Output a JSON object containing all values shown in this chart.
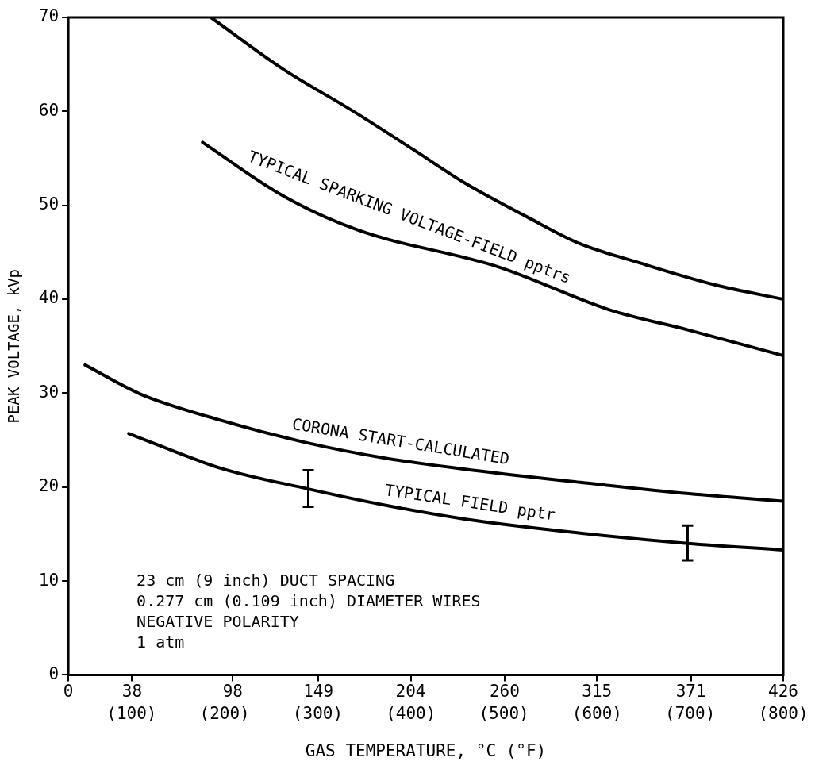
{
  "chart_data": {
    "type": "line",
    "xlabel": "GAS TEMPERATURE, °C (°F)",
    "ylabel": "PEAK VOLTAGE, kVp",
    "xlim": [
      0,
      426
    ],
    "ylim": [
      0,
      70
    ],
    "xticks": [
      0,
      38,
      98,
      149,
      204,
      260,
      315,
      371,
      426
    ],
    "x2lim": [
      32,
      800
    ],
    "x2ticks": [
      {
        "value": 100,
        "label": "(100)"
      },
      {
        "value": 200,
        "label": "(200)"
      },
      {
        "value": 300,
        "label": "(300)"
      },
      {
        "value": 400,
        "label": "(400)"
      },
      {
        "value": 500,
        "label": "(500)"
      },
      {
        "value": 600,
        "label": "(600)"
      },
      {
        "value": 700,
        "label": "(700)"
      },
      {
        "value": 800,
        "label": "(800)"
      }
    ],
    "yticks": [
      0,
      10,
      20,
      30,
      40,
      50,
      60,
      70
    ],
    "series": [
      {
        "color": "#000000",
        "x": [
          85,
          128,
          169,
          205,
          236,
          273,
          305,
          338,
          386,
          426
        ],
        "values": [
          70,
          64.5,
          60.1,
          56.0,
          52.4,
          48.8,
          45.9,
          44.0,
          41.5,
          40.0
        ]
      },
      {
        "name": "TYPICAL SPARKING VOLTAGE-FIELD pptrs",
        "color": "#000000",
        "x": [
          80,
          128,
          172,
          257,
          322,
          370,
          426
        ],
        "values": [
          56.7,
          51.0,
          47.4,
          43.4,
          38.9,
          36.7,
          34.0
        ]
      },
      {
        "name": "CORONA START-CALCULATED",
        "color": "#000000",
        "x": [
          10,
          43,
          91,
          140,
          188,
          241,
          305,
          370,
          426
        ],
        "values": [
          33.0,
          29.9,
          27.1,
          24.8,
          23.1,
          21.8,
          20.5,
          19.3,
          18.5
        ]
      },
      {
        "name": "TYPICAL FIELD pptr",
        "color": "#000000",
        "x": [
          36,
          91,
          143,
          188,
          236,
          305,
          369,
          426
        ],
        "values": [
          25.7,
          22.0,
          19.8,
          18.1,
          16.6,
          15.1,
          14.0,
          13.3
        ],
        "errors": [
          null,
          null,
          [
            17.9,
            21.8
          ],
          null,
          null,
          null,
          [
            12.2,
            15.9
          ],
          null
        ]
      }
    ],
    "annotations": [
      "23 cm (9 inch) DUCT SPACING",
      "0.277 cm (0.109 inch) DIAMETER WIRES",
      "NEGATIVE POLARITY",
      "1 atm"
    ]
  }
}
